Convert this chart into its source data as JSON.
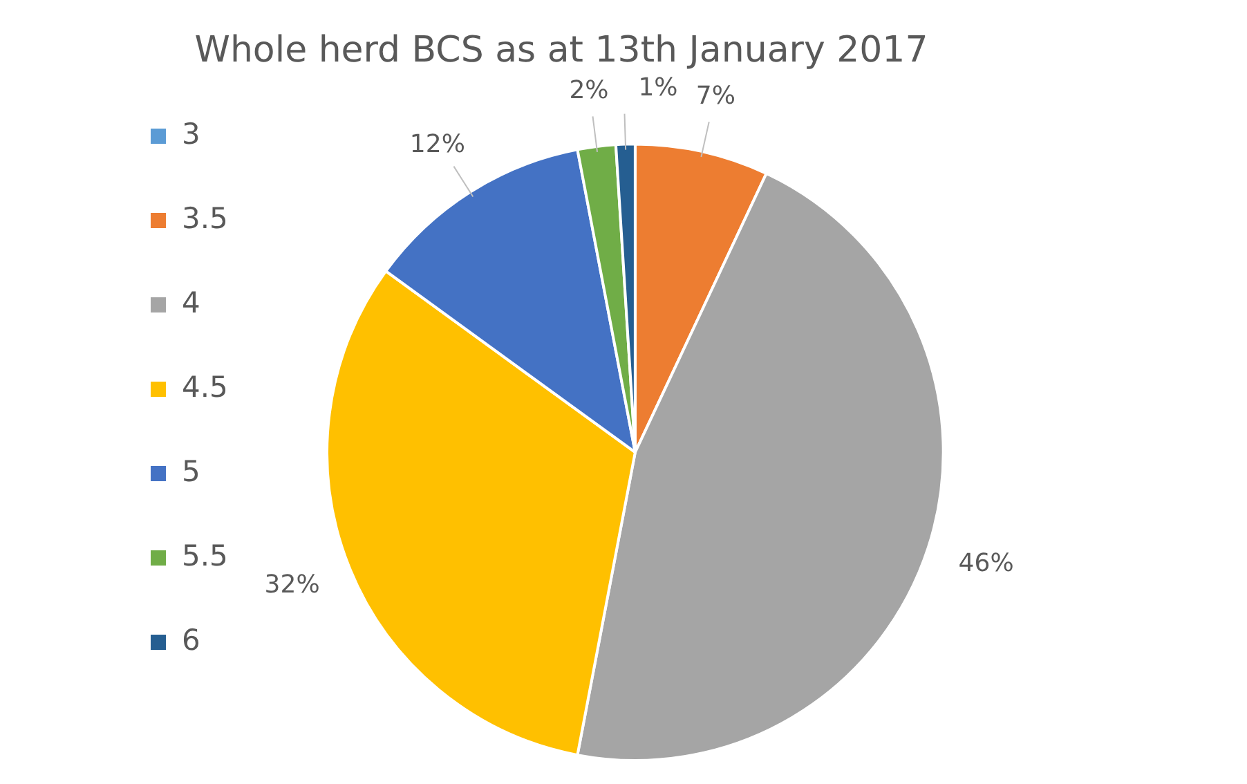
{
  "chart_data": {
    "type": "pie",
    "title": "Whole herd BCS as at 13th January 2017",
    "categories": [
      "3",
      "3.5",
      "4",
      "4.5",
      "5",
      "5.5",
      "6"
    ],
    "values": [
      0,
      7,
      46,
      32,
      12,
      2,
      1
    ],
    "colors": [
      "#5b9bd5",
      "#ed7d31",
      "#a5a5a5",
      "#ffc000",
      "#4472c4",
      "#70ad47",
      "#255e91"
    ],
    "value_labels": [
      null,
      "7%",
      "46%",
      "32%",
      "12%",
      "2%",
      "1%"
    ],
    "legend": "left"
  }
}
